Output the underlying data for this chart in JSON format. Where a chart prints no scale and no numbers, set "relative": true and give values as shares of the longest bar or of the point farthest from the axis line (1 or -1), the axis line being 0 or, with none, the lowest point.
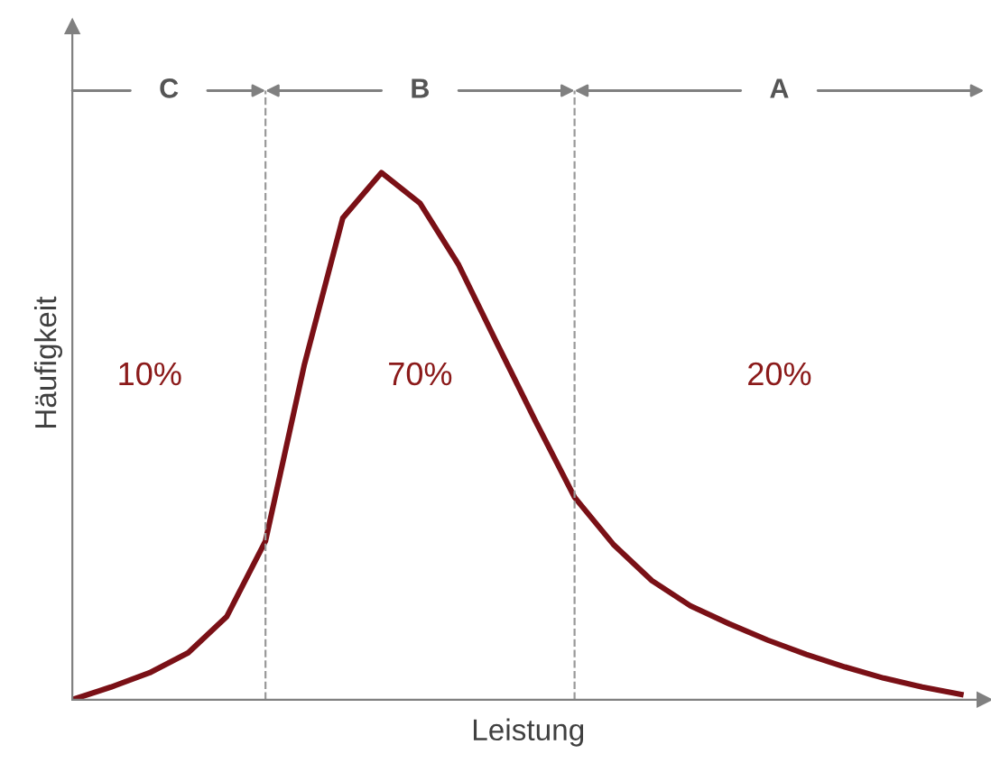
{
  "chart_data": {
    "type": "line",
    "relative": true,
    "xlabel": "Leistung",
    "ylabel": "Häufigkeit",
    "marker": "none",
    "line_style": "solid",
    "categories": [
      null,
      null,
      null,
      null,
      null,
      null,
      null,
      null,
      null,
      null,
      null,
      null,
      null,
      null,
      null,
      null,
      null,
      null,
      null,
      null,
      null,
      null,
      null,
      null
    ],
    "series": [
      {
        "color": "#7a1016",
        "values": [
          0,
          0.024,
          0.051,
          0.089,
          0.158,
          0.301,
          0.634,
          0.914,
          1.0,
          0.942,
          0.825,
          0.675,
          0.527,
          0.384,
          0.295,
          0.226,
          0.178,
          0.144,
          0.113,
          0.086,
          0.062,
          0.041,
          0.024,
          0.01
        ]
      }
    ],
    "annotations": [
      "C",
      "B",
      "A",
      "10%",
      "70%",
      "20%"
    ]
  }
}
